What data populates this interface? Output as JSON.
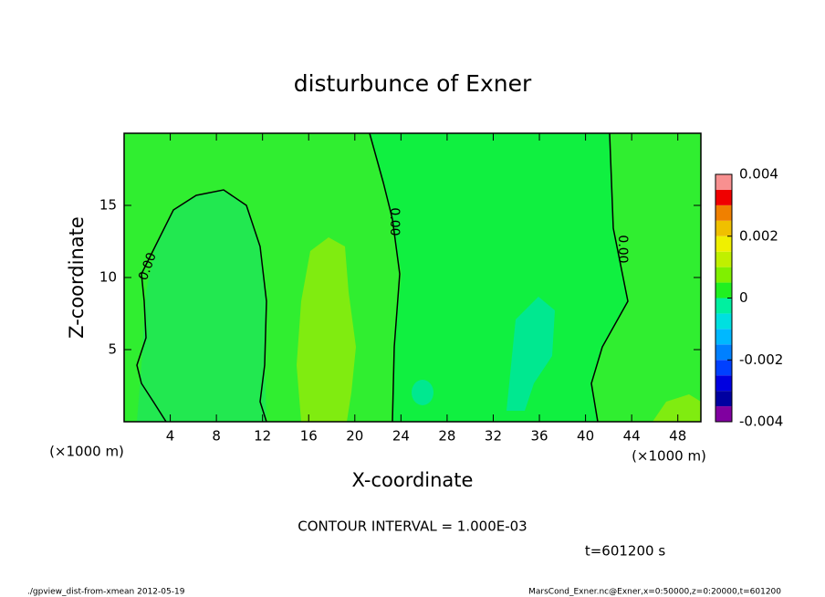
{
  "chart_data": {
    "type": "contour",
    "title": "disturbunce of Exner",
    "xlabel": "X-coordinate",
    "ylabel": "Z-coordinate",
    "x_unit_label": "(×1000 m)",
    "xlim": [
      0,
      50
    ],
    "xticks": [
      4,
      8,
      12,
      16,
      20,
      24,
      28,
      32,
      36,
      40,
      44,
      48
    ],
    "ylim": [
      0,
      20
    ],
    "yticks": [
      5,
      10,
      15
    ],
    "contour_labels": [
      "0.00",
      "0.00",
      "0.00"
    ],
    "colorbar": {
      "levels": [
        -0.004,
        -0.0035,
        -0.003,
        -0.0025,
        -0.002,
        -0.0015,
        -0.001,
        -0.0005,
        0,
        0.0005,
        0.001,
        0.0015,
        0.002,
        0.0025,
        0.003,
        0.0035,
        0.004
      ],
      "colors": [
        "#8000a0",
        "#0000a0",
        "#0000e0",
        "#0040ff",
        "#0080ff",
        "#00b8ff",
        "#00e0e0",
        "#00f0a0",
        "#20f020",
        "#80f000",
        "#c0f000",
        "#f0f000",
        "#f0c000",
        "#f08000",
        "#f00000",
        "#f89090"
      ],
      "ticks": [
        -0.004,
        -0.002,
        0,
        0.002,
        0.004
      ]
    },
    "contour_interval": "CONTOUR INTERVAL = 1.000E-03",
    "time_label": "t=601200 s",
    "footer_left": "./gpview_dist-from-xmean  2012-05-19",
    "footer_right": "MarsCond_Exner.nc@Exner,x=0:50000,z=0:20000,t=601200"
  }
}
